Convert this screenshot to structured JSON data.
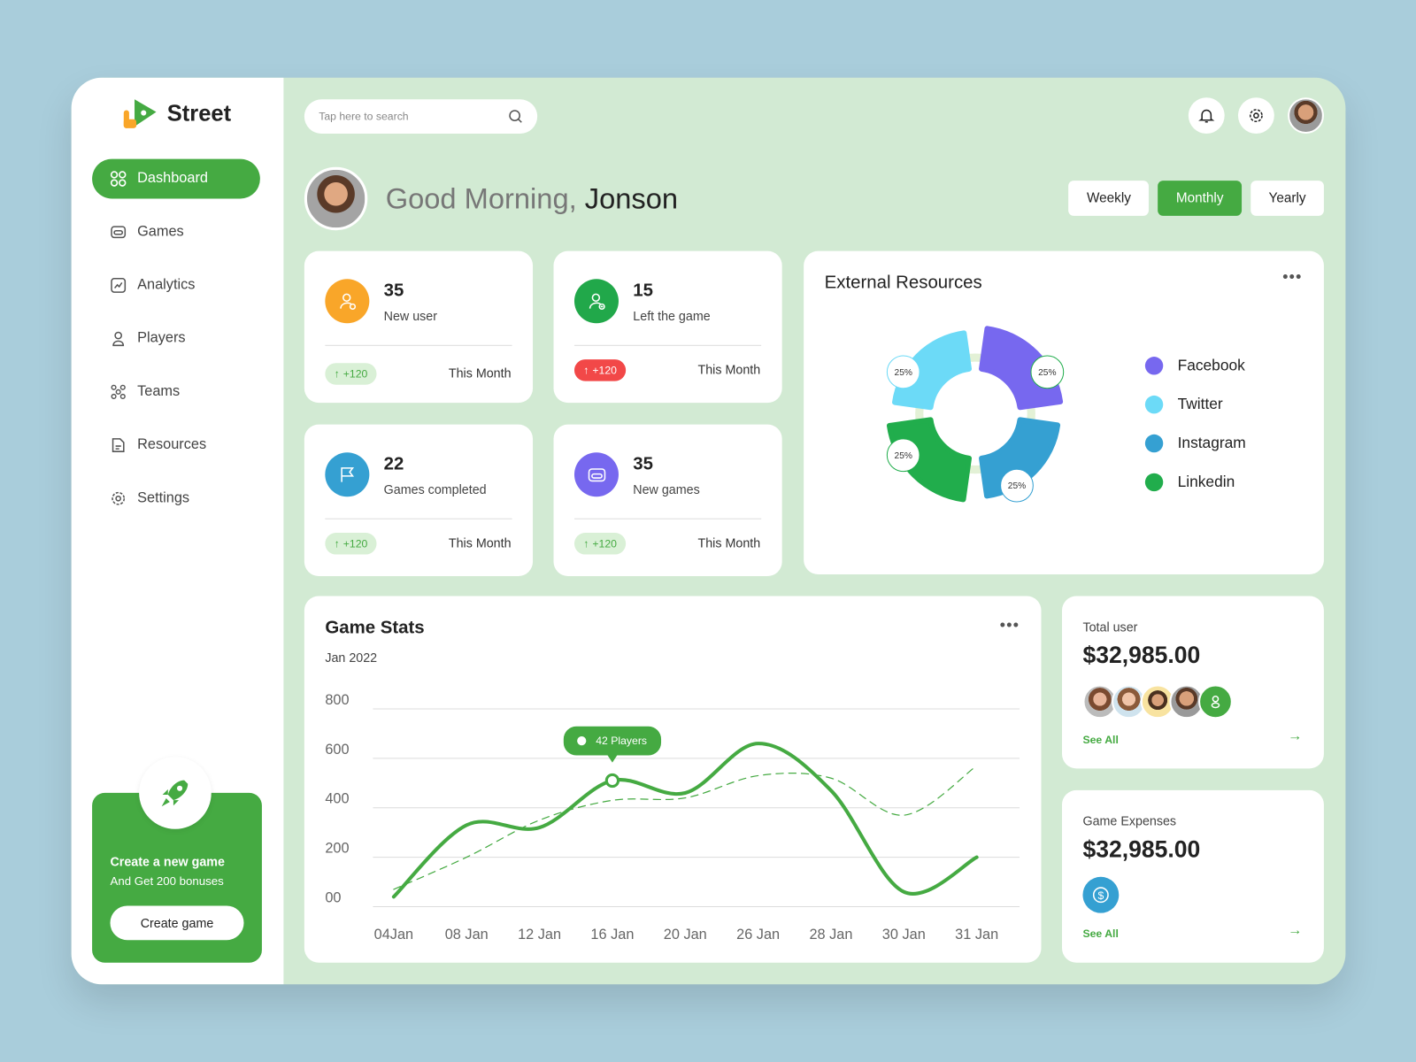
{
  "brand": {
    "name": "Street"
  },
  "sidebar": {
    "items": [
      {
        "label": "Dashboard",
        "icon": "grid-icon",
        "active": true
      },
      {
        "label": "Games",
        "icon": "gamepad-icon"
      },
      {
        "label": "Analytics",
        "icon": "analytics-icon"
      },
      {
        "label": "Players",
        "icon": "user-icon"
      },
      {
        "label": "Teams",
        "icon": "team-icon"
      },
      {
        "label": "Resources",
        "icon": "document-icon"
      },
      {
        "label": "Settings",
        "icon": "gear-icon"
      }
    ],
    "promo": {
      "title": "Create a new game",
      "subtitle": "And Get 200 bonuses",
      "button": "Create game"
    }
  },
  "search": {
    "placeholder": "Tap here to search"
  },
  "greeting": {
    "prefix": "Good Morning,",
    "name": "Jonson"
  },
  "periods": {
    "weekly": "Weekly",
    "monthly": "Monthly",
    "yearly": "Yearly",
    "selected": "Monthly"
  },
  "stats": [
    {
      "value": "35",
      "label": "New user",
      "change": "+120",
      "period": "This Month",
      "color": "#f9a629",
      "trend": "up"
    },
    {
      "value": "15",
      "label": "Left the game",
      "change": "+120",
      "period": "This Month",
      "color": "#21a84a",
      "trend": "up-red"
    },
    {
      "value": "22",
      "label": "Games completed",
      "change": "+120",
      "period": "This Month",
      "color": "#35a0d2",
      "trend": "up"
    },
    {
      "value": "35",
      "label": "New games",
      "change": "+120",
      "period": "This Month",
      "color": "#7768ef",
      "trend": "up"
    }
  ],
  "external": {
    "title": "External Resources",
    "segments": [
      {
        "name": "Facebook",
        "pct": "25%",
        "color": "#7768ef"
      },
      {
        "name": "Twitter",
        "pct": "25%",
        "color": "#6cdaf7"
      },
      {
        "name": "Instagram",
        "pct": "25%",
        "color": "#35a0d2"
      },
      {
        "name": "Linkedin",
        "pct": "25%",
        "color": "#21ad4c"
      }
    ]
  },
  "chart_data": {
    "type": "line",
    "title": "Game Stats",
    "subtitle": "Jan 2022",
    "categories": [
      "04Jan",
      "08 Jan",
      "12 Jan",
      "16 Jan",
      "20 Jan",
      "26 Jan",
      "28 Jan",
      "30 Jan",
      "31 Jan"
    ],
    "yticks": [
      "00",
      "200",
      "400",
      "600",
      "800"
    ],
    "ylim": [
      0,
      800
    ],
    "grid": true,
    "series": [
      {
        "style": "solid",
        "color": "#45aa42",
        "values": [
          40,
          330,
          320,
          510,
          460,
          660,
          470,
          60,
          200
        ]
      },
      {
        "style": "dashed",
        "color": "#45aa42",
        "values": [
          70,
          200,
          350,
          430,
          440,
          530,
          520,
          370,
          570
        ]
      }
    ],
    "tooltip": {
      "label": "42 Players",
      "category": "16 Jan"
    }
  },
  "total_user": {
    "label": "Total user",
    "value": "$32,985.00",
    "see_all": "See All"
  },
  "expenses": {
    "label": "Game Expenses",
    "value": "$32,985.00",
    "see_all": "See All"
  },
  "colors": {
    "accent": "#45aa42",
    "background": "#d2ead3",
    "danger": "#f24848"
  }
}
